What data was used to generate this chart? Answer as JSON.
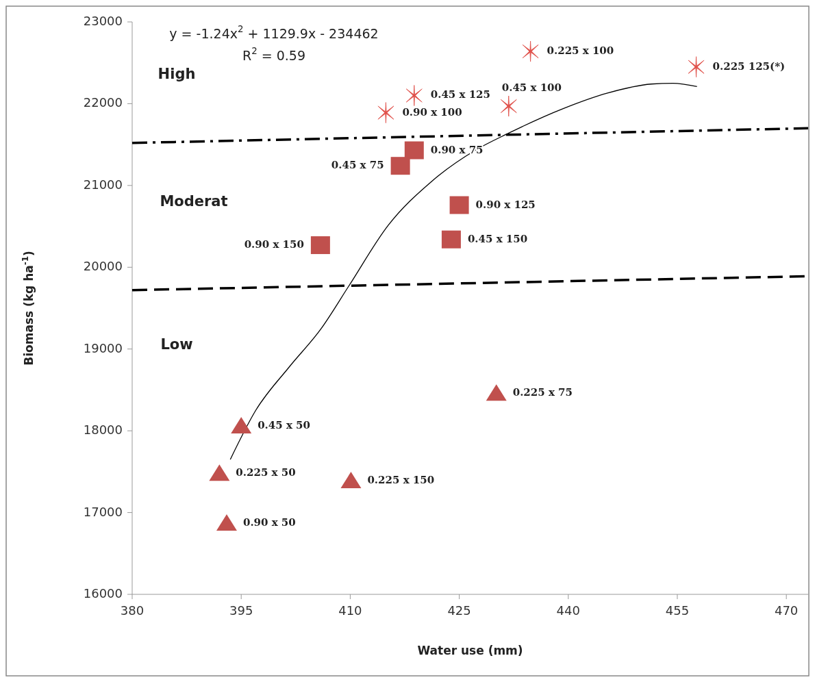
{
  "chart_data": {
    "type": "scatter",
    "xlabel": "Water use (mm)",
    "ylabel": "Biomass (kg ha$^{-1}$)",
    "xlim": [
      380,
      473
    ],
    "xticks": [
      380,
      395,
      410,
      425,
      440,
      455,
      470
    ],
    "ylim": [
      16000,
      23000
    ],
    "yticks": [
      16000,
      17000,
      18000,
      19000,
      20000,
      21000,
      22000,
      23000
    ],
    "grid": false,
    "series": [
      {
        "marker": "triangle",
        "color": "#c0504d",
        "x": [
          395.0,
          392.0,
          393.0,
          410.1,
          430.1
        ],
        "values": [
          18060,
          17480,
          16870,
          17390,
          18460
        ]
      },
      {
        "marker": "square",
        "color": "#c0504d",
        "x": [
          418.8,
          416.9,
          425.0,
          423.9,
          405.9
        ],
        "values": [
          21430,
          21240,
          20760,
          20340,
          20270
        ]
      },
      {
        "marker": "cross",
        "color": "#e0504a",
        "x": [
          414.9,
          418.8,
          431.8,
          434.8,
          457.6
        ],
        "values": [
          21890,
          22100,
          21970,
          22640,
          22450
        ]
      },
      {
        "type": "line",
        "marker": "none",
        "line_style": "solid",
        "color": "#000000",
        "x": [
          393.5,
          397.0,
          401.6,
          406.0,
          409.8,
          415.2,
          421.2,
          427.2,
          431.8,
          439.3,
          445.4,
          451.4,
          454.4,
          457.7
        ],
        "values": [
          17650,
          18250,
          18780,
          19250,
          19770,
          20510,
          21050,
          21430,
          21640,
          21940,
          22130,
          22240,
          22250,
          22210
        ]
      },
      {
        "type": "line",
        "marker": "none",
        "line_style": "dashdot",
        "color": "#000000",
        "x": [
          380,
          473
        ],
        "values": [
          21520,
          21700
        ]
      },
      {
        "type": "line",
        "marker": "none",
        "line_style": "dashed",
        "color": "#000000",
        "x": [
          380,
          473
        ],
        "values": [
          19720,
          19890
        ]
      }
    ],
    "annotations": [
      "y = -1.24x$^{2}$ + 1129.9x - 234462",
      "R$^{2}$ = 0.59",
      "High",
      "Moderat",
      "Low",
      {
        "text": "0.45 x 50",
        "x": 395.0,
        "y": 18060
      },
      {
        "text": "0.225 x 50",
        "x": 392.0,
        "y": 17480
      },
      {
        "text": "0.90 x 50",
        "x": 393.0,
        "y": 16870
      },
      {
        "text": "0.225 x 150",
        "x": 410.1,
        "y": 17390
      },
      {
        "text": "0.225 x 75",
        "x": 430.1,
        "y": 18460
      },
      {
        "text": "0.90 x 75",
        "x": 418.8,
        "y": 21430
      },
      {
        "text": "0.45 x 75",
        "x": 416.9,
        "y": 21240
      },
      {
        "text": "0.90 x 125",
        "x": 425.0,
        "y": 20760
      },
      {
        "text": "0.45 x 150",
        "x": 423.9,
        "y": 20340
      },
      {
        "text": "0.90 x 150",
        "x": 405.9,
        "y": 20270
      },
      {
        "text": "0.90 x 100",
        "x": 414.9,
        "y": 21890
      },
      {
        "text": "0.45 x 125",
        "x": 418.8,
        "y": 22100
      },
      {
        "text": "0.45 x 100",
        "x": 431.8,
        "y": 21970
      },
      {
        "text": "0.225 x 100",
        "x": 434.8,
        "y": 22640
      },
      {
        "text": "0.225 125(*)",
        "x": 457.6,
        "y": 22450
      }
    ]
  }
}
